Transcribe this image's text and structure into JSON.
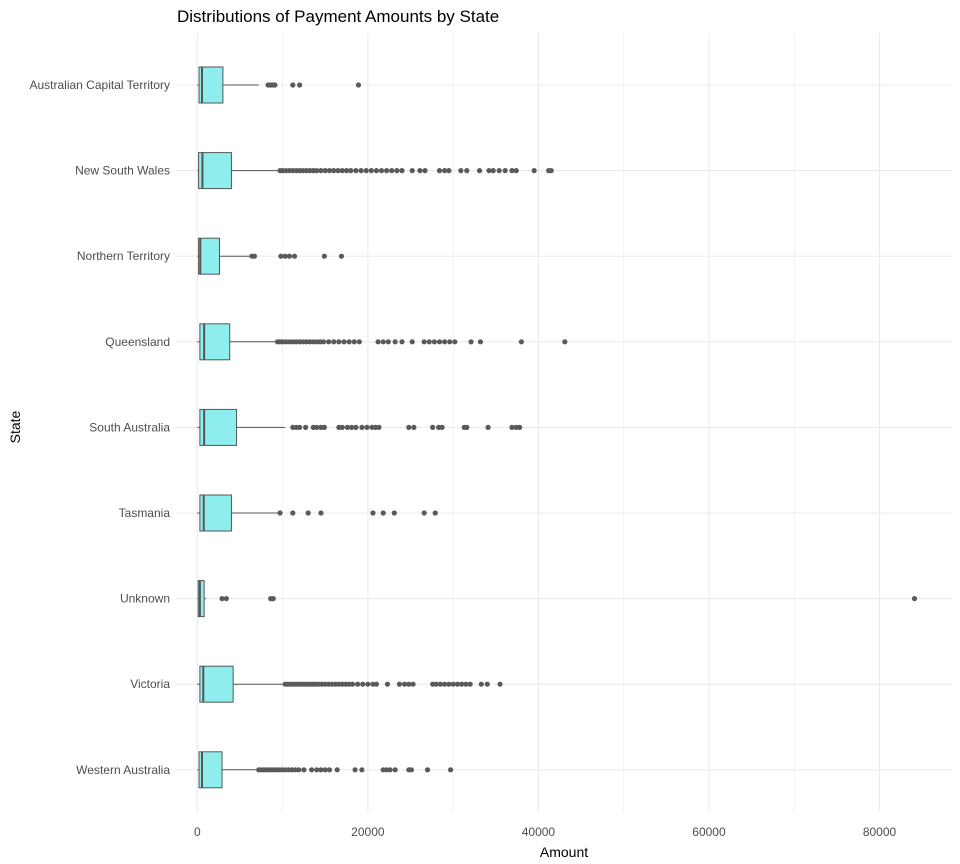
{
  "chart_data": {
    "type": "boxplot",
    "orientation": "horizontal",
    "title": "Distributions of Payment Amounts by State",
    "xlabel": "Amount",
    "ylabel": "State",
    "xlim": [
      -2500,
      88500
    ],
    "x_ticks": [
      0,
      20000,
      40000,
      60000,
      80000
    ],
    "x_tick_labels": [
      "0",
      "20000",
      "40000",
      "60000",
      "80000"
    ],
    "grid": true,
    "legend": "none",
    "colors": {
      "box_fill": "#8EEDED",
      "box_stroke": "#555555",
      "outlier": "#5a5a5a",
      "grid": "#ebebeb"
    },
    "categories": [
      "Australian Capital Territory",
      "New South Wales",
      "Northern Territory",
      "Queensland",
      "South Australia",
      "Tasmania",
      "Unknown",
      "Victoria",
      "Western Australia"
    ],
    "boxes": [
      {
        "state": "Australian Capital Territory",
        "min": 0,
        "q1": 200,
        "median": 550,
        "q3": 3000,
        "max": 7200,
        "outliers": [
          8300,
          8600,
          8900,
          9100,
          11200,
          12000,
          18900
        ]
      },
      {
        "state": "New South Wales",
        "min": 0,
        "q1": 150,
        "median": 600,
        "q3": 4000,
        "max": 9600,
        "outliers": [
          9700,
          10000,
          10400,
          10800,
          11200,
          11600,
          12000,
          12400,
          12800,
          13200,
          13600,
          14000,
          14500,
          15000,
          15500,
          16000,
          16500,
          17000,
          17500,
          18000,
          18600,
          19200,
          19800,
          20400,
          21000,
          21600,
          22200,
          22800,
          23400,
          24000,
          25200,
          26100,
          26700,
          28400,
          29000,
          29500,
          30900,
          31600,
          33100,
          34200,
          34700,
          35400,
          36100,
          36900,
          37400,
          39500,
          41200,
          41500
        ]
      },
      {
        "state": "Northern Territory",
        "min": 0,
        "q1": 150,
        "median": 350,
        "q3": 2600,
        "max": 6300,
        "outliers": [
          6400,
          6700,
          9800,
          10300,
          10800,
          11400,
          14900,
          16900
        ]
      },
      {
        "state": "Queensland",
        "min": 0,
        "q1": 300,
        "median": 800,
        "q3": 3800,
        "max": 9300,
        "outliers": [
          9400,
          9700,
          10000,
          10400,
          10800,
          11200,
          11600,
          12000,
          12400,
          12800,
          13200,
          13600,
          14000,
          14400,
          14800,
          15400,
          16000,
          16600,
          17200,
          17800,
          18400,
          19000,
          21200,
          21800,
          22400,
          23200,
          24000,
          25200,
          26600,
          27200,
          27800,
          28400,
          29000,
          29600,
          30200,
          32100,
          33200,
          38000,
          43100
        ]
      },
      {
        "state": "South Australia",
        "min": 0,
        "q1": 300,
        "median": 800,
        "q3": 4600,
        "max": 10300,
        "outliers": [
          11200,
          11600,
          12000,
          12700,
          13600,
          14000,
          14500,
          14900,
          16600,
          17000,
          17600,
          18100,
          18600,
          19300,
          19900,
          20500,
          20900,
          21300,
          24800,
          25400,
          27600,
          28300,
          28700,
          31300,
          31600,
          34100,
          36900,
          37400,
          37800
        ]
      },
      {
        "state": "Tasmania",
        "min": 0,
        "q1": 300,
        "median": 750,
        "q3": 4000,
        "max": 9500,
        "outliers": [
          9700,
          11200,
          13000,
          14500,
          20600,
          21800,
          23100,
          26600,
          27900
        ]
      },
      {
        "state": "Unknown",
        "min": 0,
        "q1": 100,
        "median": 300,
        "q3": 800,
        "max": 1000,
        "outliers": [
          2900,
          3400,
          8600,
          8900,
          84100
        ]
      },
      {
        "state": "Victoria",
        "min": 0,
        "q1": 300,
        "median": 700,
        "q3": 4200,
        "max": 10200,
        "outliers": [
          10300,
          10600,
          10900,
          11200,
          11500,
          11800,
          12100,
          12400,
          12700,
          13000,
          13300,
          13600,
          13900,
          14200,
          14600,
          15000,
          15400,
          15800,
          16200,
          16600,
          17000,
          17400,
          17800,
          18200,
          18800,
          19400,
          20000,
          20600,
          21000,
          22300,
          23700,
          24300,
          24800,
          25300,
          27600,
          28000,
          28500,
          29000,
          29500,
          30000,
          30500,
          31000,
          31500,
          32000,
          33300,
          34000,
          35500
        ]
      },
      {
        "state": "Western Australia",
        "min": 0,
        "q1": 200,
        "median": 550,
        "q3": 2900,
        "max": 7100,
        "outliers": [
          7200,
          7500,
          7800,
          8100,
          8400,
          8700,
          9000,
          9300,
          9600,
          9900,
          10300,
          10700,
          11100,
          11500,
          11900,
          12500,
          13400,
          14000,
          14500,
          15000,
          15500,
          16400,
          18500,
          19300,
          21800,
          22200,
          22600,
          23200,
          24800,
          25100,
          27000,
          29700
        ]
      }
    ]
  }
}
